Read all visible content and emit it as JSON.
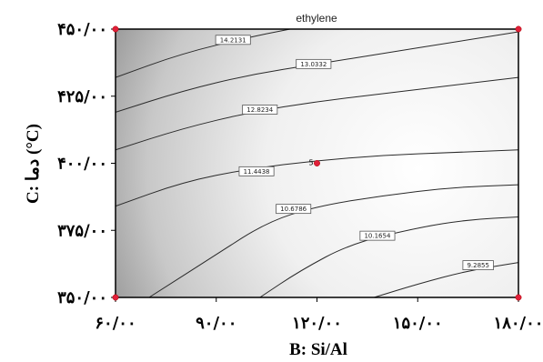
{
  "chart_data": {
    "type": "contour",
    "title": "ethylene",
    "xlabel": "B: Si/Al",
    "ylabel": "C: دما (°C)",
    "xlim": [
      60,
      180
    ],
    "ylim": [
      350,
      450
    ],
    "x_ticks": [
      "۶۰/۰۰",
      "۹۰/۰۰",
      "۱۲۰/۰۰",
      "۱۵۰/۰۰",
      "۱۸۰/۰۰"
    ],
    "y_ticks": [
      "۳۵۰/۰۰",
      "۳۷۵/۰۰",
      "۴۰۰/۰۰",
      "۴۲۵/۰۰",
      "۴۵۰/۰۰"
    ],
    "shading": {
      "dark_corner": "top-left",
      "light_region": "right-center",
      "dark_color": "#1e1e1e",
      "light_color": "#ffffff"
    },
    "contours": [
      {
        "label": "14.2131",
        "points": [
          [
            60,
            432
          ],
          [
            80,
            441
          ],
          [
            100,
            447
          ],
          [
            112,
            450
          ]
        ],
        "label_at": [
          95,
          446
        ]
      },
      {
        "label": "13.0332",
        "points": [
          [
            60,
            419
          ],
          [
            80,
            427
          ],
          [
            100,
            433
          ],
          [
            120,
            437
          ],
          [
            140,
            441
          ],
          [
            160,
            445
          ],
          [
            180,
            449
          ]
        ],
        "label_at": [
          119,
          437
        ]
      },
      {
        "label": "12.8234",
        "points": [
          [
            60,
            405
          ],
          [
            80,
            413
          ],
          [
            100,
            419
          ],
          [
            120,
            423
          ],
          [
            140,
            426
          ],
          [
            160,
            429
          ],
          [
            180,
            432
          ]
        ],
        "label_at": [
          103,
          420
        ]
      },
      {
        "label": "11.4438",
        "points": [
          [
            60,
            384
          ],
          [
            80,
            393
          ],
          [
            100,
            398
          ],
          [
            120,
            401
          ],
          [
            140,
            403
          ],
          [
            160,
            404
          ],
          [
            180,
            405
          ]
        ],
        "label_at": [
          102,
          397
        ]
      },
      {
        "label": "10.6786",
        "points": [
          [
            70,
            350
          ],
          [
            90,
            366
          ],
          [
            105,
            378
          ],
          [
            120,
            384
          ],
          [
            140,
            388
          ],
          [
            160,
            391
          ],
          [
            180,
            392
          ]
        ],
        "label_at": [
          113,
          383
        ]
      },
      {
        "label": "10.1654",
        "points": [
          [
            103,
            350
          ],
          [
            115,
            360
          ],
          [
            130,
            370
          ],
          [
            150,
            376
          ],
          [
            165,
            379
          ],
          [
            180,
            380
          ]
        ],
        "label_at": [
          138,
          373
        ]
      },
      {
        "label": "9.2855",
        "points": [
          [
            137,
            350
          ],
          [
            150,
            355
          ],
          [
            165,
            360
          ],
          [
            180,
            363
          ]
        ],
        "label_at": [
          168,
          362
        ]
      }
    ],
    "design_points": [
      {
        "x": 60,
        "y": 350
      },
      {
        "x": 60,
        "y": 450
      },
      {
        "x": 180,
        "y": 350
      },
      {
        "x": 180,
        "y": 450
      },
      {
        "x": 120,
        "y": 400,
        "label": "5"
      }
    ]
  }
}
